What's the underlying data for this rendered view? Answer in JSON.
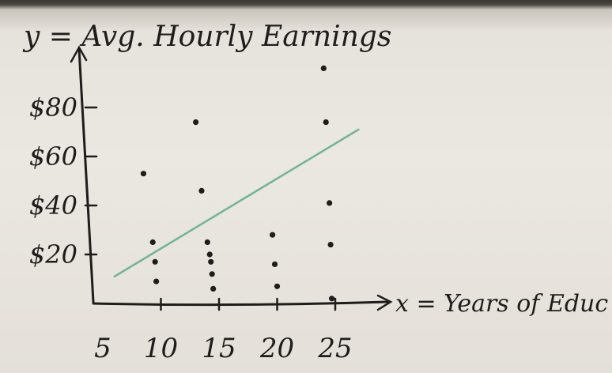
{
  "chart_data": {
    "type": "scatter",
    "title": "y = Avg. Hourly Earnings",
    "xlabel": "x = Years of Educ",
    "ylabel": "",
    "x_ticks": [
      5,
      10,
      15,
      20,
      25
    ],
    "x_tick_labels": [
      "5",
      "10",
      "15",
      "20",
      "25"
    ],
    "y_ticks": [
      20,
      40,
      60,
      80
    ],
    "y_tick_labels": [
      "$20",
      "$40",
      "$60",
      "$80"
    ],
    "xlim": [
      5,
      27
    ],
    "ylim": [
      0,
      100
    ],
    "grid": false,
    "points": [
      {
        "x": 8.5,
        "y": 53
      },
      {
        "x": 9.3,
        "y": 25
      },
      {
        "x": 9.5,
        "y": 17
      },
      {
        "x": 9.6,
        "y": 9
      },
      {
        "x": 13,
        "y": 74
      },
      {
        "x": 13.5,
        "y": 46
      },
      {
        "x": 14,
        "y": 25
      },
      {
        "x": 14.2,
        "y": 20
      },
      {
        "x": 14.3,
        "y": 17
      },
      {
        "x": 14.4,
        "y": 12
      },
      {
        "x": 14.5,
        "y": 6
      },
      {
        "x": 19.6,
        "y": 28
      },
      {
        "x": 19.8,
        "y": 16
      },
      {
        "x": 20,
        "y": 7
      },
      {
        "x": 24,
        "y": 96
      },
      {
        "x": 24.2,
        "y": 74
      },
      {
        "x": 24.5,
        "y": 41
      },
      {
        "x": 24.6,
        "y": 24
      },
      {
        "x": 24.7,
        "y": 2
      }
    ],
    "trend_line": {
      "x": [
        6,
        27
      ],
      "y": [
        11,
        71
      ]
    },
    "colors": {
      "ink": "#1f1d1c",
      "trend": "#6fb39a"
    }
  }
}
